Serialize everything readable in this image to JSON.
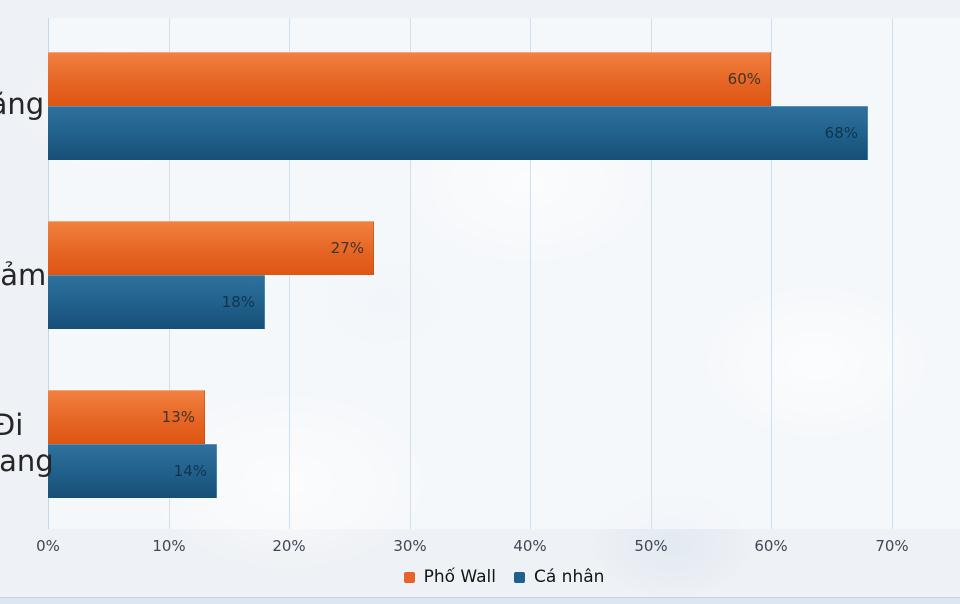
{
  "chart_data": {
    "type": "bar",
    "orientation": "horizontal",
    "title": "",
    "categories": [
      "Tăng",
      "Giảm",
      "Đi ngang"
    ],
    "series": [
      {
        "name": "Phố Wall",
        "color": "#e8622b",
        "values": [
          60,
          27,
          13
        ],
        "labels": [
          "60%",
          "27%",
          "13%"
        ]
      },
      {
        "name": "Cá nhân",
        "color": "#1f618c",
        "values": [
          68,
          18,
          14
        ],
        "labels": [
          "68%",
          "18%",
          "14%"
        ]
      }
    ],
    "x_axis": {
      "ticks": [
        "0%",
        "10%",
        "20%",
        "30%",
        "40%",
        "50%",
        "60%",
        "70%"
      ],
      "tick_values": [
        0,
        10,
        20,
        30,
        40,
        50,
        60,
        70
      ],
      "xlim": [
        0,
        75.6
      ]
    },
    "value_suffix": "%",
    "grid": true,
    "legend_position": "bottom",
    "plot_background": "#f8fbfe",
    "gridline_color": "#cfe0f0"
  }
}
